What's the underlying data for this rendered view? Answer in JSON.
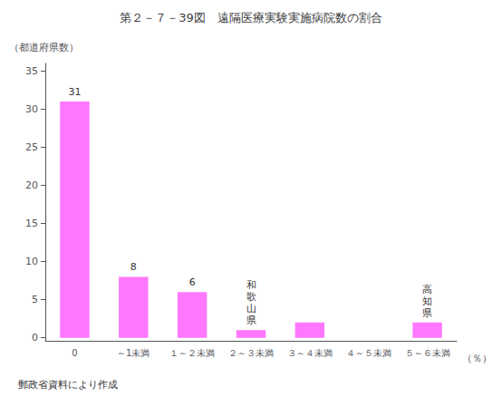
{
  "chart_data": {
    "type": "bar",
    "title": "第２－７－39図　遠隔医療実験実施病院数の割合",
    "y_label": "（都道府県数）",
    "x_label": "（％）",
    "source": "郵政省資料により作成",
    "categories": [
      "0",
      "～1未満",
      "１～２未満",
      "２～３未満",
      "３～４未満",
      "４～５未満",
      "５～６未満"
    ],
    "values": [
      31,
      8,
      6,
      1,
      2,
      0,
      2
    ],
    "data_labels": true,
    "value_labels": [
      "31",
      "8",
      "6",
      null,
      null,
      null,
      null
    ],
    "annotations": [
      {
        "category": "２～３未満",
        "text": "和\n歌\n山\n県"
      },
      {
        "category": "５～６未満",
        "text": "高\n知\n県"
      }
    ],
    "color": "#FF77FF",
    "ylim": [
      -0.4,
      36
    ],
    "yticks": [
      0,
      5,
      10,
      15,
      20,
      25,
      30,
      35
    ],
    "grid": false
  }
}
